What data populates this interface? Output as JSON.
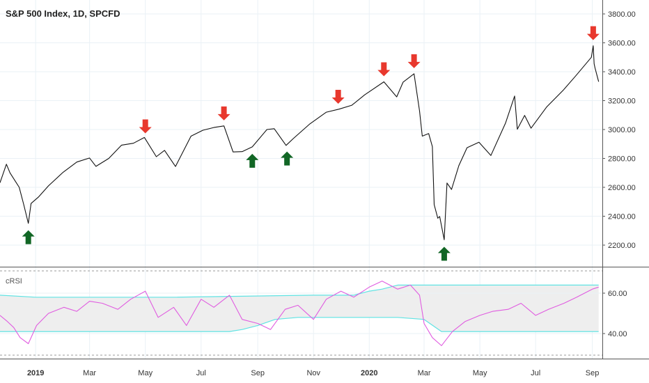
{
  "title": "S&P 500 Index, 1D, SPCFD",
  "colors": {
    "price_line": "#111111",
    "crsi_line": "#e05ce0",
    "band_line": "#5fe3e3",
    "band_fill": "#eeeeee",
    "arrow_down": "#e8382d",
    "arrow_up": "#116625",
    "grid": "#eaf1f6"
  },
  "icons": {
    "sell": "arrow-down-icon",
    "buy": "arrow-up-icon"
  },
  "chart_data": [
    {
      "type": "line",
      "title": "S&P 500 Index, 1D, SPCFD",
      "ylim": [
        2100,
        3900
      ],
      "yticks": [
        "3800.00",
        "3600.00",
        "3400.00",
        "3200.00",
        "3000.00",
        "2800.00",
        "2600.00",
        "2400.00",
        "2200.00"
      ],
      "ytick_values": [
        3800,
        3600,
        3400,
        3200,
        3000,
        2800,
        2600,
        2400,
        2200
      ],
      "x_tick_labels": [
        "2019",
        "Mar",
        "May",
        "Jul",
        "Sep",
        "Nov",
        "2020",
        "Mar",
        "May",
        "Jul",
        "Sep"
      ],
      "x_tick_dates": [
        "2019-01-01",
        "2019-03-01",
        "2019-05-01",
        "2019-07-01",
        "2019-09-01",
        "2019-11-01",
        "2020-01-01",
        "2020-03-01",
        "2020-05-01",
        "2020-07-01",
        "2020-09-01"
      ],
      "x_range": [
        "2018-11-23",
        "2020-09-12"
      ],
      "grid": true,
      "series": [
        {
          "x": [
            "2018-11-23",
            "2018-11-30",
            "2018-12-04",
            "2018-12-10",
            "2018-12-14",
            "2018-12-19",
            "2018-12-24",
            "2018-12-27",
            "2019-01-04",
            "2019-01-15",
            "2019-01-31",
            "2019-02-15",
            "2019-03-01",
            "2019-03-08",
            "2019-03-22",
            "2019-04-05",
            "2019-04-18",
            "2019-04-30",
            "2019-05-13",
            "2019-05-22",
            "2019-06-03",
            "2019-06-20",
            "2019-07-03",
            "2019-07-15",
            "2019-07-26",
            "2019-08-05",
            "2019-08-15",
            "2019-08-26",
            "2019-09-11",
            "2019-09-19",
            "2019-10-02",
            "2019-10-10",
            "2019-10-28",
            "2019-11-15",
            "2019-11-29",
            "2019-12-13",
            "2019-12-27",
            "2020-01-17",
            "2020-01-31",
            "2020-02-07",
            "2020-02-19",
            "2020-02-25",
            "2020-02-28",
            "2020-03-06",
            "2020-03-10",
            "2020-03-12",
            "2020-03-16",
            "2020-03-18",
            "2020-03-23",
            "2020-03-26",
            "2020-03-31",
            "2020-04-08",
            "2020-04-17",
            "2020-04-30",
            "2020-05-13",
            "2020-05-29",
            "2020-06-08",
            "2020-06-11",
            "2020-06-19",
            "2020-06-26",
            "2020-07-13",
            "2020-07-31",
            "2020-08-14",
            "2020-08-31",
            "2020-09-02",
            "2020-09-03",
            "2020-09-04",
            "2020-09-08"
          ],
          "values": [
            2632,
            2760,
            2700,
            2640,
            2600,
            2480,
            2351,
            2488,
            2532,
            2610,
            2704,
            2775,
            2803,
            2745,
            2800,
            2892,
            2905,
            2945,
            2812,
            2856,
            2744,
            2954,
            2995,
            3014,
            3025,
            2845,
            2847,
            2880,
            3000,
            3006,
            2890,
            2938,
            3039,
            3120,
            3141,
            3168,
            3240,
            3330,
            3226,
            3328,
            3386,
            3128,
            2954,
            2972,
            2882,
            2480,
            2386,
            2398,
            2237,
            2630,
            2585,
            2750,
            2874,
            2912,
            2820,
            3044,
            3232,
            3002,
            3098,
            3009,
            3155,
            3271,
            3372,
            3500,
            3580,
            3455,
            3426,
            3331
          ]
        }
      ],
      "annotations": [
        {
          "kind": "sell",
          "x": "2019-05-01"
        },
        {
          "kind": "sell",
          "x": "2019-07-26"
        },
        {
          "kind": "sell",
          "x": "2019-11-28"
        },
        {
          "kind": "sell",
          "x": "2020-01-17"
        },
        {
          "kind": "sell",
          "x": "2020-02-19"
        },
        {
          "kind": "sell",
          "x": "2020-09-02"
        },
        {
          "kind": "buy",
          "x": "2018-12-24"
        },
        {
          "kind": "buy",
          "x": "2019-08-26"
        },
        {
          "kind": "buy",
          "x": "2019-10-03"
        },
        {
          "kind": "buy",
          "x": "2020-03-23"
        }
      ]
    },
    {
      "type": "line",
      "title": "cRSI",
      "ylim": [
        28,
        72
      ],
      "yticks": [
        "60.00",
        "40.00"
      ],
      "ytick_values": [
        60,
        40
      ],
      "grid": true,
      "series": [
        {
          "x": [
            "2018-11-23",
            "2018-12-01",
            "2018-12-08",
            "2018-12-15",
            "2018-12-24",
            "2019-01-02",
            "2019-01-15",
            "2019-02-01",
            "2019-02-15",
            "2019-03-01",
            "2019-03-15",
            "2019-04-01",
            "2019-04-15",
            "2019-05-01",
            "2019-05-15",
            "2019-06-01",
            "2019-06-15",
            "2019-07-01",
            "2019-07-15",
            "2019-08-01",
            "2019-08-15",
            "2019-09-01",
            "2019-09-15",
            "2019-10-01",
            "2019-10-15",
            "2019-11-01",
            "2019-11-15",
            "2019-12-01",
            "2019-12-15",
            "2020-01-01",
            "2020-01-15",
            "2020-02-01",
            "2020-02-15",
            "2020-02-25",
            "2020-03-01",
            "2020-03-10",
            "2020-03-20",
            "2020-04-01",
            "2020-04-15",
            "2020-05-01",
            "2020-05-15",
            "2020-06-01",
            "2020-06-15",
            "2020-07-01",
            "2020-07-15",
            "2020-08-01",
            "2020-08-15",
            "2020-09-01",
            "2020-09-08"
          ],
          "values": [
            49,
            46,
            43,
            38,
            35,
            44,
            50,
            53,
            51,
            56,
            55,
            52,
            57,
            61,
            48,
            53,
            44,
            57,
            53,
            59,
            47,
            45,
            42,
            52,
            54,
            47,
            57,
            61,
            58,
            63,
            66,
            62,
            64,
            59,
            45,
            38,
            34,
            41,
            46,
            49,
            51,
            52,
            55,
            49,
            52,
            55,
            58,
            62,
            63
          ]
        },
        {
          "x": [
            "2018-11-23",
            "2019-01-01",
            "2019-06-01",
            "2019-11-01",
            "2019-12-15",
            "2020-01-01",
            "2020-01-15",
            "2020-02-01",
            "2020-03-01",
            "2020-06-01",
            "2020-09-08"
          ],
          "values": [
            59,
            58,
            58,
            59,
            59,
            61,
            62,
            64,
            64,
            64,
            64
          ]
        },
        {
          "x": [
            "2018-11-23",
            "2019-01-01",
            "2019-06-01",
            "2019-08-01",
            "2019-08-15",
            "2019-09-01",
            "2019-09-20",
            "2019-10-15",
            "2020-01-01",
            "2020-02-01",
            "2020-03-01",
            "2020-03-20",
            "2020-04-01",
            "2020-06-01",
            "2020-09-08"
          ],
          "values": [
            41,
            41,
            41,
            41,
            42,
            44,
            47,
            48,
            48,
            48,
            47,
            41,
            41,
            41,
            41
          ]
        }
      ]
    }
  ]
}
